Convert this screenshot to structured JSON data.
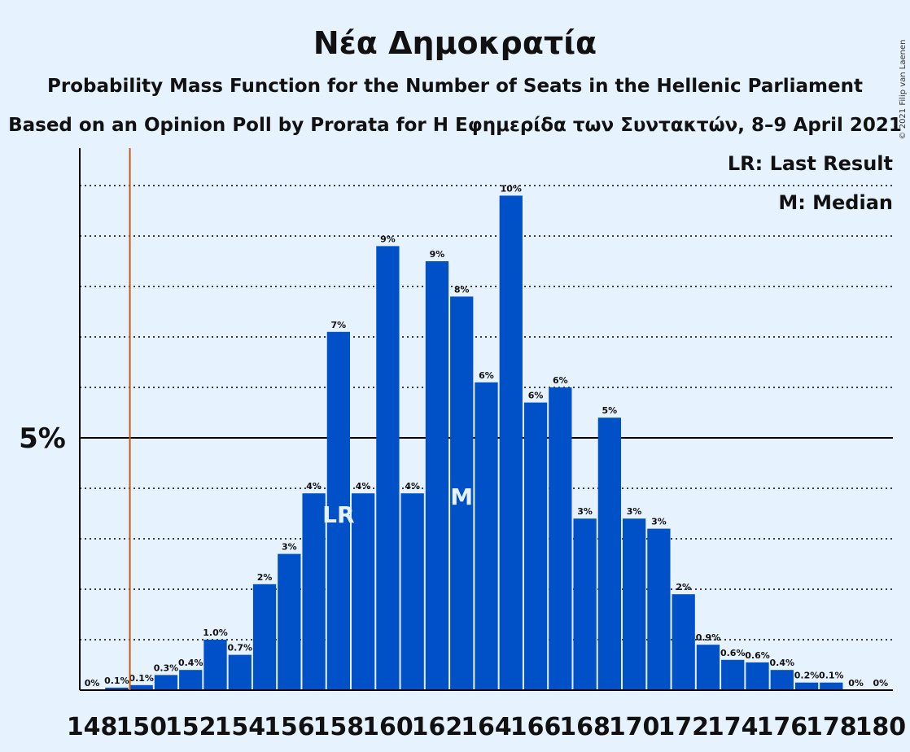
{
  "header": {
    "title": "Νέα Δημοκρατία",
    "subtitle1": "Probability Mass Function for the Number of Seats in the Hellenic Parliament",
    "subtitle2": "Based on an Opinion Poll by Prorata for Η Εφημερίδα των Συντακτών, 8–9 April 2021"
  },
  "legend": {
    "last_result": "LR: Last Result",
    "median": "M: Median"
  },
  "copyright": "© 2021 Filip van Laenen",
  "colors": {
    "background": "#e6f2fd",
    "bar": "#0050c8",
    "last_result_line": "#c55a11",
    "grid": "#000000"
  },
  "chart_data": {
    "type": "bar",
    "x": [
      148,
      149,
      150,
      151,
      152,
      153,
      154,
      155,
      156,
      157,
      158,
      159,
      160,
      161,
      162,
      163,
      164,
      165,
      166,
      167,
      168,
      169,
      170,
      171,
      172,
      173,
      174,
      175,
      176,
      177,
      178,
      179,
      180
    ],
    "values": [
      0.0,
      0.05,
      0.1,
      0.3,
      0.4,
      1.0,
      0.7,
      2.1,
      2.7,
      3.9,
      7.1,
      3.9,
      8.8,
      3.9,
      8.5,
      7.8,
      6.1,
      9.8,
      5.7,
      6.0,
      3.4,
      5.4,
      3.4,
      3.2,
      1.9,
      0.9,
      0.6,
      0.55,
      0.4,
      0.15,
      0.15,
      0.0,
      0.0
    ],
    "labels": [
      "0%",
      "0.1%",
      "0.1%",
      "0.3%",
      "0.4%",
      "1.0%",
      "0.7%",
      "2%",
      "3%",
      "4%",
      "7%",
      "4%",
      "9%",
      "4%",
      "9%",
      "8%",
      "6%",
      "10%",
      "6%",
      "6%",
      "3%",
      "5%",
      "3%",
      "3%",
      "2%",
      "0.9%",
      "0.6%",
      "0.6%",
      "0.4%",
      "0.2%",
      "0.1%",
      "0%",
      "0%"
    ],
    "xtick_labels": [
      "148",
      "150",
      "152",
      "154",
      "156",
      "158",
      "160",
      "162",
      "164",
      "166",
      "168",
      "170",
      "172",
      "174",
      "176",
      "178",
      "180"
    ],
    "ytick_label": "5%",
    "ytick_value": 5,
    "ylim": [
      0,
      10.7
    ],
    "grid_step": 1,
    "last_result": 150,
    "last_result_marker": "LR",
    "last_result_bar": 158,
    "median": 163,
    "median_marker": "M"
  }
}
